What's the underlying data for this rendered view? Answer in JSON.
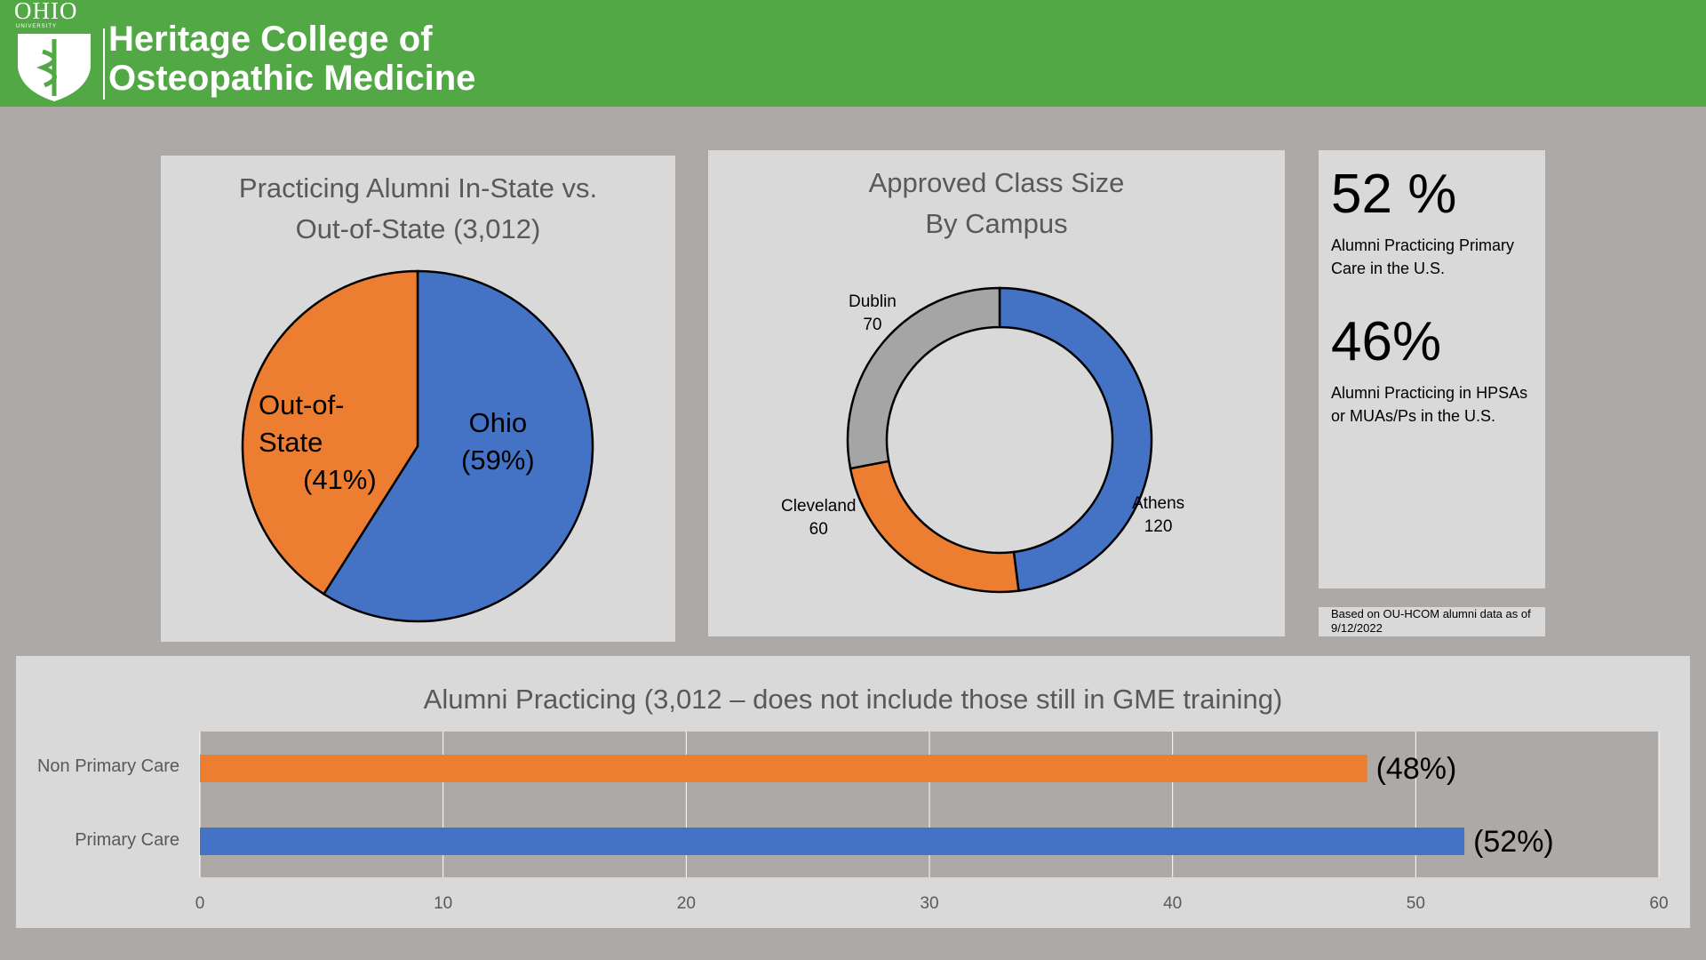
{
  "header": {
    "logo_ohio": "OHIO",
    "logo_university": "UNIVERSITY",
    "title_line1": "Heritage College of",
    "title_line2": "Osteopathic Medicine"
  },
  "stats": {
    "primary_pct": "52 %",
    "primary_text": "Alumni Practicing Primary Care in the U.S.",
    "hpsa_pct": "46%",
    "hpsa_text": "Alumni Practicing in HPSAs or MUAs/Ps in the U.S."
  },
  "note": "Based on OU-HCOM alumni data as of 9/12/2022",
  "colors": {
    "blue": "#4472C4",
    "orange": "#ED7D31",
    "gray": "#A5A5A5",
    "green": "#53A846"
  },
  "chart_data": [
    {
      "type": "pie",
      "title_line1": "Practicing Alumni In-State vs.",
      "title_line2": "Out-of-State (3,012)",
      "slices": [
        {
          "name": "Ohio",
          "value": 59,
          "label_line1": "Ohio",
          "label_line2": "(59%)"
        },
        {
          "name": "Out-of-State",
          "value": 41,
          "label_line1": "Out-of-",
          "label_line2": "State",
          "label_line3": "(41%)"
        }
      ]
    },
    {
      "type": "pie",
      "subtype": "donut",
      "title_line1": "Approved Class Size",
      "title_line2": "By Campus",
      "slices": [
        {
          "name": "Athens",
          "value": 120
        },
        {
          "name": "Cleveland",
          "value": 60
        },
        {
          "name": "Dublin",
          "value": 70
        }
      ]
    },
    {
      "type": "bar",
      "orientation": "horizontal",
      "title": "Alumni Practicing (3,012 – does not include those still in GME training)",
      "categories": [
        "Non Primary Care",
        "Primary Care"
      ],
      "values": [
        48,
        52
      ],
      "data_labels": [
        "(48%)",
        "(52%)"
      ],
      "xlim": [
        0,
        60
      ],
      "xticks": [
        0,
        10,
        20,
        30,
        40,
        50,
        60
      ],
      "grid": true
    }
  ]
}
